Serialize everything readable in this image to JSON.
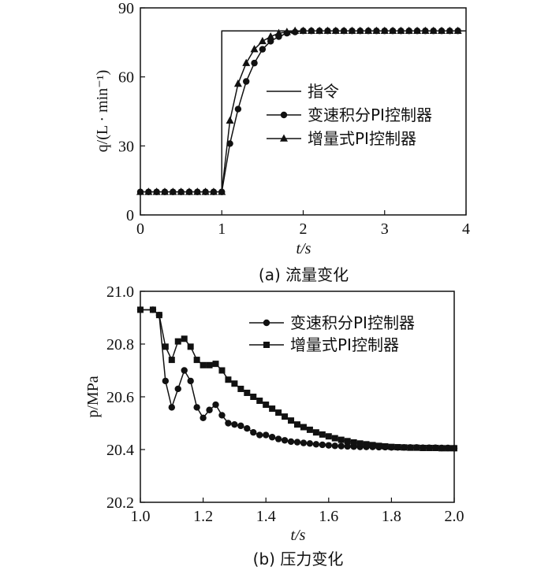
{
  "chart_data": [
    {
      "type": "line",
      "caption": "(a) 流量变化",
      "xlabel": "t/s",
      "ylabel": "q/(L · min⁻¹)",
      "xlim": [
        0,
        4
      ],
      "ylim": [
        0,
        90
      ],
      "xticks": [
        "0",
        "1",
        "2",
        "3",
        "4"
      ],
      "yticks": [
        "0",
        "30",
        "60",
        "90"
      ],
      "legend_position": "right-middle",
      "grid": false,
      "series": [
        {
          "name": "指令",
          "marker": "none",
          "x": [
            0,
            1.0,
            1.0,
            4.0
          ],
          "y": [
            10,
            10,
            80,
            80
          ]
        },
        {
          "name": "变速积分PI控制器",
          "marker": "circle",
          "x": [
            0,
            0.1,
            0.2,
            0.3,
            0.4,
            0.5,
            0.6,
            0.7,
            0.8,
            0.9,
            1.0,
            1.1,
            1.2,
            1.3,
            1.4,
            1.5,
            1.6,
            1.7,
            1.8,
            1.9,
            2.0,
            2.1,
            2.2,
            2.3,
            2.4,
            2.5,
            2.6,
            2.7,
            2.8,
            2.9,
            3.0,
            3.1,
            3.2,
            3.3,
            3.4,
            3.5,
            3.6,
            3.7,
            3.8,
            3.9
          ],
          "y": [
            10,
            10,
            10,
            10,
            10,
            10,
            10,
            10,
            10,
            10,
            10,
            31,
            46,
            58,
            66,
            72,
            75.5,
            77.5,
            79,
            79.5,
            80,
            80,
            80,
            80,
            80,
            80,
            80,
            80,
            80,
            80,
            80,
            80,
            80,
            80,
            80,
            80,
            80,
            80,
            80,
            80
          ]
        },
        {
          "name": "增量式PI控制器",
          "marker": "triangle",
          "x": [
            0,
            0.1,
            0.2,
            0.3,
            0.4,
            0.5,
            0.6,
            0.7,
            0.8,
            0.9,
            1.0,
            1.1,
            1.2,
            1.3,
            1.4,
            1.5,
            1.6,
            1.7,
            1.8,
            1.9,
            2.0,
            2.1,
            2.2,
            2.3,
            2.4,
            2.5,
            2.6,
            2.7,
            2.8,
            2.9,
            3.0,
            3.1,
            3.2,
            3.3,
            3.4,
            3.5,
            3.6,
            3.7,
            3.8,
            3.9
          ],
          "y": [
            10,
            10,
            10,
            10,
            10,
            10,
            10,
            10,
            10,
            10,
            10,
            41,
            57,
            66,
            72,
            75.5,
            77.5,
            79,
            79.5,
            80,
            80,
            80,
            80,
            80,
            80,
            80,
            80,
            80,
            80,
            80,
            80,
            80,
            80,
            80,
            80,
            80,
            80,
            80,
            80,
            80
          ]
        }
      ]
    },
    {
      "type": "line",
      "caption": "(b) 压力变化",
      "xlabel": "t/s",
      "ylabel": "p/MPa",
      "xlim": [
        1.0,
        2.0
      ],
      "ylim": [
        20.2,
        21.0
      ],
      "xticks": [
        "1.0",
        "1.2",
        "1.4",
        "1.6",
        "1.8",
        "2.0"
      ],
      "yticks": [
        "20.2",
        "20.4",
        "20.6",
        "20.8",
        "21.0"
      ],
      "legend_position": "top-right",
      "grid": false,
      "series": [
        {
          "name": "变速积分PI控制器",
          "marker": "circle",
          "x": [
            1.0,
            1.04,
            1.06,
            1.08,
            1.1,
            1.12,
            1.14,
            1.16,
            1.18,
            1.2,
            1.22,
            1.24,
            1.26,
            1.28,
            1.3,
            1.32,
            1.34,
            1.36,
            1.38,
            1.4,
            1.42,
            1.44,
            1.46,
            1.48,
            1.5,
            1.52,
            1.54,
            1.56,
            1.58,
            1.6,
            1.62,
            1.64,
            1.66,
            1.68,
            1.7,
            1.72,
            1.74,
            1.76,
            1.78,
            1.8,
            1.82,
            1.84,
            1.86,
            1.88,
            1.9,
            1.92,
            1.94,
            1.96,
            1.98,
            2.0
          ],
          "y": [
            20.93,
            20.93,
            20.91,
            20.66,
            20.56,
            20.63,
            20.7,
            20.66,
            20.56,
            20.52,
            20.55,
            20.57,
            20.53,
            20.5,
            20.495,
            20.49,
            20.48,
            20.465,
            20.455,
            20.455,
            20.447,
            20.44,
            20.435,
            20.43,
            20.428,
            20.425,
            20.423,
            20.42,
            20.418,
            20.416,
            20.414,
            20.413,
            20.412,
            20.411,
            20.41,
            20.41,
            20.41,
            20.409,
            20.409,
            20.408,
            20.408,
            20.408,
            20.408,
            20.408,
            20.407,
            20.407,
            20.407,
            20.406,
            20.406,
            20.405
          ]
        },
        {
          "name": "增量式PI控制器",
          "marker": "square",
          "x": [
            1.0,
            1.04,
            1.06,
            1.08,
            1.1,
            1.12,
            1.14,
            1.16,
            1.18,
            1.2,
            1.22,
            1.24,
            1.26,
            1.28,
            1.3,
            1.32,
            1.34,
            1.36,
            1.38,
            1.4,
            1.42,
            1.44,
            1.46,
            1.48,
            1.5,
            1.52,
            1.54,
            1.56,
            1.58,
            1.6,
            1.62,
            1.64,
            1.66,
            1.68,
            1.7,
            1.72,
            1.74,
            1.76,
            1.78,
            1.8,
            1.82,
            1.84,
            1.86,
            1.88,
            1.9,
            1.92,
            1.94,
            1.96,
            1.98,
            2.0
          ],
          "y": [
            20.93,
            20.93,
            20.91,
            20.79,
            20.74,
            20.81,
            20.82,
            20.79,
            20.74,
            20.72,
            20.72,
            20.725,
            20.7,
            20.665,
            20.65,
            20.63,
            20.615,
            20.6,
            20.585,
            20.57,
            20.555,
            20.54,
            20.525,
            20.51,
            20.495,
            20.485,
            20.475,
            20.465,
            20.457,
            20.45,
            20.443,
            20.437,
            20.432,
            20.427,
            20.423,
            20.42,
            20.417,
            20.414,
            20.412,
            20.41,
            20.409,
            20.408,
            20.407,
            20.407,
            20.406,
            20.406,
            20.406,
            20.405,
            20.405,
            20.405
          ]
        }
      ]
    }
  ]
}
